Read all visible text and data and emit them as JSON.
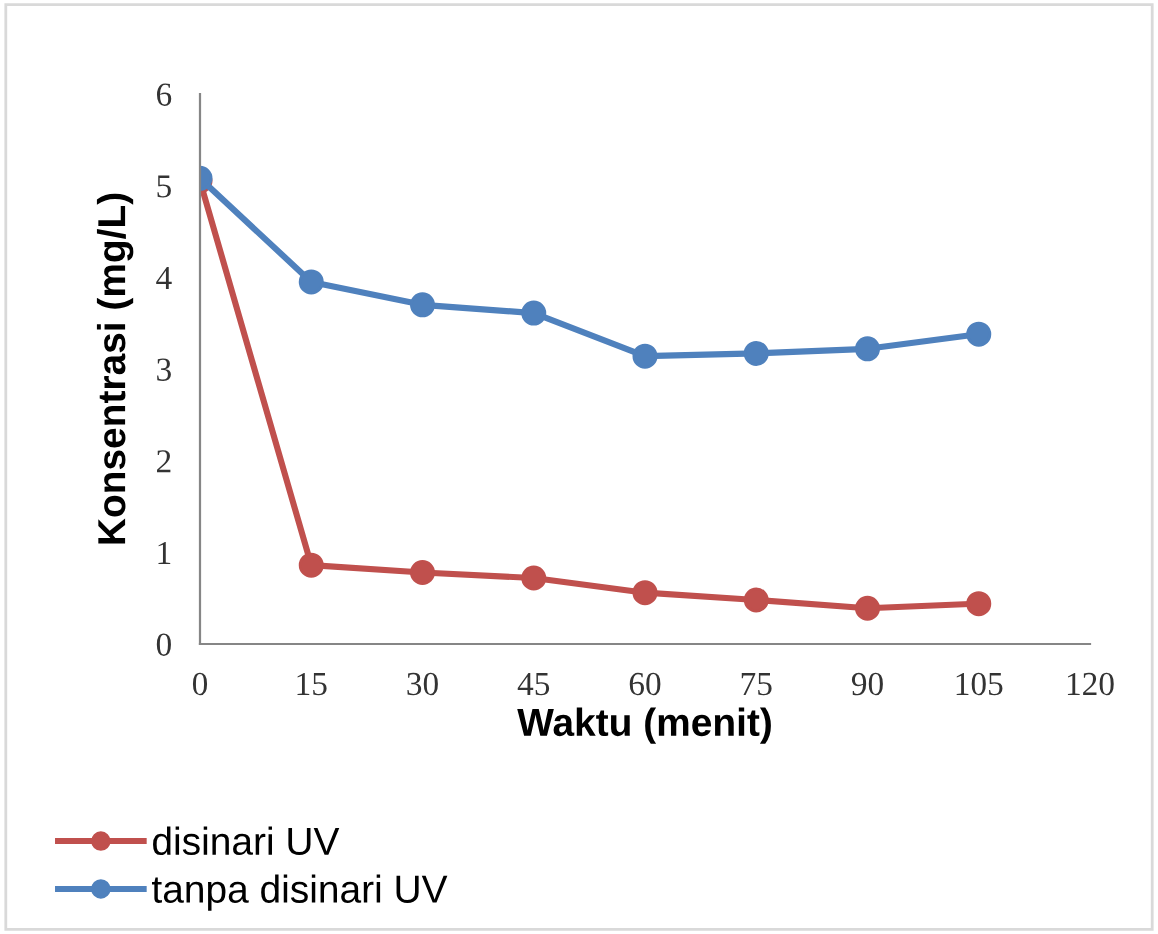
{
  "chart_data": {
    "type": "line",
    "xlabel": "Waktu (menit)",
    "ylabel": "Konsentrasi (mg/L)",
    "x": [
      0,
      15,
      30,
      45,
      60,
      75,
      90,
      105
    ],
    "series": [
      {
        "name": "disinari UV",
        "color": "#c0504d",
        "values": [
          5.05,
          0.86,
          0.78,
          0.72,
          0.56,
          0.48,
          0.39,
          0.44
        ]
      },
      {
        "name": "tanpa disinari UV",
        "color": "#4f81bd",
        "values": [
          5.08,
          3.95,
          3.7,
          3.61,
          3.14,
          3.17,
          3.22,
          3.38
        ]
      }
    ],
    "xlim": [
      0,
      120
    ],
    "xticks": [
      0,
      15,
      30,
      45,
      60,
      75,
      90,
      105,
      120
    ],
    "ylim": [
      0,
      6
    ],
    "yticks": [
      0,
      1,
      2,
      3,
      4,
      5,
      6
    ],
    "marker": "circle",
    "line_style": "solid",
    "grid": false,
    "legend": "bottom left"
  }
}
